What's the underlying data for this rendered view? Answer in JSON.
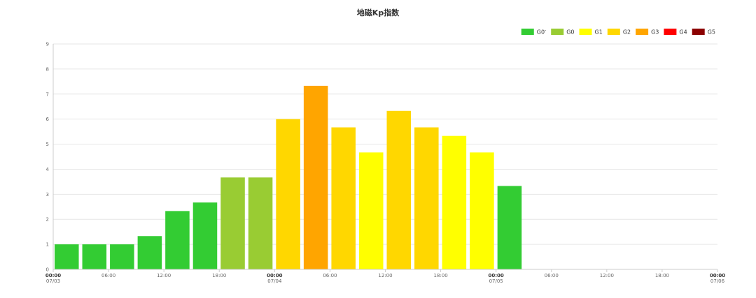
{
  "chart_data": {
    "type": "bar",
    "title": "地磁Kp指数",
    "xlabel": "",
    "ylabel": "",
    "ylim": [
      0,
      9
    ],
    "yticks": [
      0,
      1,
      2,
      3,
      4,
      5,
      6,
      7,
      8,
      9
    ],
    "xrange_hours": [
      0,
      72
    ],
    "xticks": [
      {
        "hour": 0,
        "time": "00:00",
        "date": "07/03"
      },
      {
        "hour": 6,
        "time": "06:00",
        "date": ""
      },
      {
        "hour": 12,
        "time": "12:00",
        "date": ""
      },
      {
        "hour": 18,
        "time": "18:00",
        "date": ""
      },
      {
        "hour": 24,
        "time": "00:00",
        "date": "07/04"
      },
      {
        "hour": 30,
        "time": "06:00",
        "date": ""
      },
      {
        "hour": 36,
        "time": "12:00",
        "date": ""
      },
      {
        "hour": 42,
        "time": "18:00",
        "date": ""
      },
      {
        "hour": 48,
        "time": "00:00",
        "date": "07/05"
      },
      {
        "hour": 54,
        "time": "06:00",
        "date": ""
      },
      {
        "hour": 60,
        "time": "12:00",
        "date": ""
      },
      {
        "hour": 66,
        "time": "18:00",
        "date": ""
      },
      {
        "hour": 72,
        "time": "00:00",
        "date": "07/06"
      }
    ],
    "bars": [
      {
        "start_hour": 0,
        "value": 1.0,
        "level": "G0-"
      },
      {
        "start_hour": 3,
        "value": 1.0,
        "level": "G0-"
      },
      {
        "start_hour": 6,
        "value": 1.0,
        "level": "G0-"
      },
      {
        "start_hour": 9,
        "value": 1.33,
        "level": "G0-"
      },
      {
        "start_hour": 12,
        "value": 2.33,
        "level": "G0-"
      },
      {
        "start_hour": 15,
        "value": 2.67,
        "level": "G0-"
      },
      {
        "start_hour": 18,
        "value": 3.67,
        "level": "G0"
      },
      {
        "start_hour": 21,
        "value": 3.67,
        "level": "G0"
      },
      {
        "start_hour": 24,
        "value": 6.0,
        "level": "G2"
      },
      {
        "start_hour": 27,
        "value": 7.33,
        "level": "G3"
      },
      {
        "start_hour": 30,
        "value": 5.67,
        "level": "G2"
      },
      {
        "start_hour": 33,
        "value": 4.67,
        "level": "G1"
      },
      {
        "start_hour": 36,
        "value": 6.33,
        "level": "G2"
      },
      {
        "start_hour": 39,
        "value": 5.67,
        "level": "G2"
      },
      {
        "start_hour": 42,
        "value": 5.33,
        "level": "G1"
      },
      {
        "start_hour": 45,
        "value": 4.67,
        "level": "G1"
      },
      {
        "start_hour": 48,
        "value": 3.33,
        "level": "G0-"
      }
    ],
    "legend_position": "top-right",
    "legend": [
      {
        "label": "G0",
        "suffix": "-",
        "key": "G0-",
        "color": "#33cc33"
      },
      {
        "label": "G0",
        "suffix": "",
        "key": "G0",
        "color": "#99cc33"
      },
      {
        "label": "G1",
        "suffix": "",
        "key": "G1",
        "color": "#ffff00"
      },
      {
        "label": "G2",
        "suffix": "",
        "key": "G2",
        "color": "#ffd700"
      },
      {
        "label": "G3",
        "suffix": "",
        "key": "G3",
        "color": "#ffa500"
      },
      {
        "label": "G4",
        "suffix": "",
        "key": "G4",
        "color": "#ff0000"
      },
      {
        "label": "G5",
        "suffix": "",
        "key": "G5",
        "color": "#8b0000"
      }
    ],
    "grid": true
  }
}
